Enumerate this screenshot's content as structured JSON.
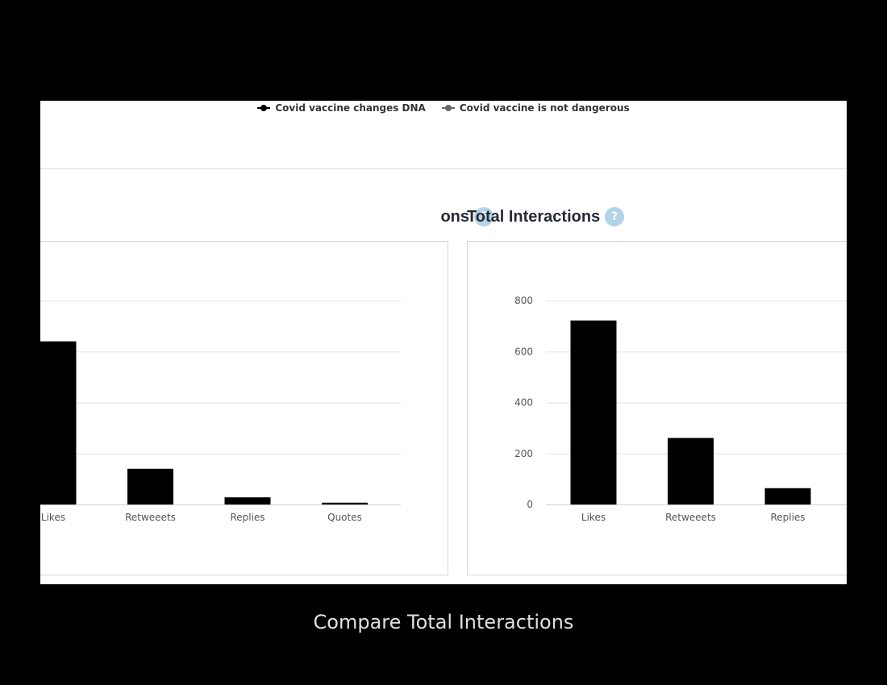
{
  "legend": {
    "items": [
      {
        "label": "Covid vaccine changes DNA",
        "color": "#000000"
      },
      {
        "label": "Covid vaccine is not dangerous",
        "color": "#666666"
      }
    ]
  },
  "left_panel": {
    "title": "ons",
    "help_icon": "?"
  },
  "right_panel": {
    "title": "Total Interactions",
    "help_icon": "?"
  },
  "caption": "Compare Total Interactions",
  "chart_data": [
    {
      "type": "bar",
      "title": "ons",
      "categories": [
        "Likes",
        "Retweeets",
        "Replies",
        "Quotes"
      ],
      "values": [
        640,
        140,
        28,
        7
      ],
      "ylim": [
        0,
        800
      ],
      "yticks": [
        0,
        200,
        400,
        600,
        800
      ],
      "grid": true,
      "bar_color": "#000000"
    },
    {
      "type": "bar",
      "title": "Total Interactions",
      "categories": [
        "Likes",
        "Retweeets",
        "Replies"
      ],
      "values": [
        722,
        261,
        64
      ],
      "ylim": [
        0,
        800
      ],
      "yticks": [
        0,
        200,
        400,
        600,
        800
      ],
      "yticklabels": [
        "0",
        "200",
        "400",
        "600",
        "800"
      ],
      "grid": true,
      "bar_color": "#000000"
    }
  ]
}
